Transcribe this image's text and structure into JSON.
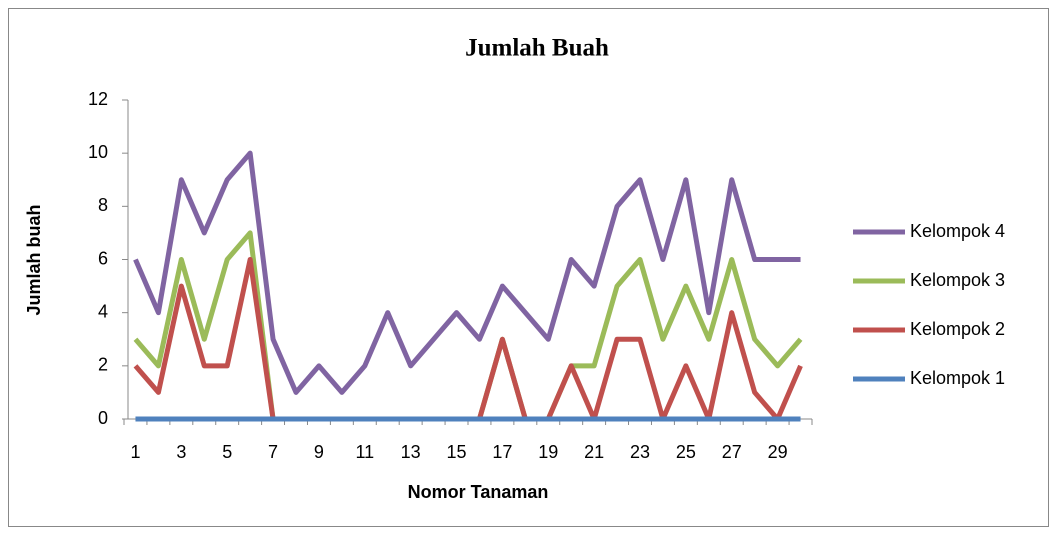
{
  "chart_data": {
    "type": "line",
    "title": "Jumlah Buah",
    "x_label": "Nomor Tanaman",
    "y_label": "Jumlah buah",
    "categories": [
      1,
      null,
      3,
      null,
      5,
      null,
      7,
      null,
      9,
      null,
      11,
      null,
      13,
      null,
      15,
      null,
      17,
      null,
      19,
      null,
      21,
      null,
      23,
      null,
      25,
      null,
      27,
      null,
      29,
      null
    ],
    "series": [
      {
        "name": "Kelompok 1",
        "color": "#4f81bd",
        "values": [
          0,
          0,
          0,
          0,
          0,
          0,
          0,
          0,
          0,
          0,
          0,
          0,
          0,
          0,
          0,
          0,
          0,
          0,
          0,
          0,
          0,
          0,
          0,
          0,
          0,
          0,
          0,
          0,
          0,
          0
        ]
      },
      {
        "name": "Kelompok 2",
        "color": "#c0504d",
        "values": [
          2,
          1,
          5,
          2,
          2,
          6,
          0,
          0,
          0,
          0,
          0,
          0,
          0,
          0,
          0,
          0,
          3,
          0,
          0,
          2,
          0,
          3,
          3,
          0,
          2,
          0,
          4,
          1,
          0,
          2
        ]
      },
      {
        "name": "Kelompok 3",
        "color": "#9bbb59",
        "values": [
          3,
          2,
          6,
          3,
          6,
          7,
          0,
          0,
          0,
          0,
          0,
          0,
          0,
          0,
          0,
          0,
          3,
          0,
          0,
          2,
          2,
          5,
          6,
          3,
          5,
          3,
          6,
          3,
          2,
          3
        ]
      },
      {
        "name": "Kelompok 4",
        "color": "#8064a2",
        "values": [
          6,
          4,
          9,
          7,
          9,
          10,
          3,
          1,
          2,
          1,
          2,
          4,
          2,
          3,
          4,
          3,
          5,
          4,
          3,
          6,
          5,
          8,
          9,
          6,
          9,
          4,
          9,
          6,
          6,
          6
        ]
      }
    ],
    "ylim": [
      0,
      12
    ],
    "yticks": [
      0,
      2,
      4,
      6,
      8,
      10,
      12
    ],
    "legend": "right"
  }
}
